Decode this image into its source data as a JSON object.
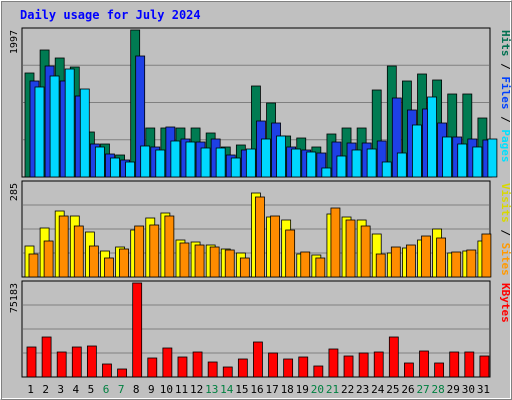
{
  "chart_data": {
    "type": "bar",
    "title": "Daily usage for July 2024",
    "categories": [
      "1",
      "2",
      "3",
      "4",
      "5",
      "6",
      "7",
      "8",
      "9",
      "10",
      "11",
      "12",
      "13",
      "14",
      "15",
      "16",
      "17",
      "18",
      "19",
      "20",
      "21",
      "22",
      "23",
      "24",
      "25",
      "26",
      "27",
      "28",
      "29",
      "30",
      "31"
    ],
    "weekend_days": [
      "6",
      "7",
      "13",
      "14",
      "20",
      "21",
      "27",
      "28"
    ],
    "panels": [
      {
        "id": "top",
        "max_label": "1997",
        "ymax": 1997,
        "legend": [
          {
            "text": "Hits",
            "color": "#007050"
          },
          {
            "text": "Files",
            "color": "#0040ff"
          },
          {
            "text": "Pages",
            "color": "#00e0ff"
          }
        ],
        "separator": "/",
        "series": [
          {
            "name": "Hits",
            "color": "#007b52",
            "values": [
              1416,
              1725,
              1622,
              1498,
              613,
              443,
              299,
              1997,
              659,
              659,
              663,
              663,
              601,
              406,
              431,
              1232,
              1008,
              552,
              524,
              401,
              582,
              659,
              659,
              1178,
              1512,
              1299,
              1406,
              1319,
              1122,
              1128,
              801
            ]
          },
          {
            "name": "Files",
            "color": "#1e40e6",
            "values": [
              1309,
              1505,
              1308,
              1094,
              443,
              314,
              228,
              1646,
              406,
              680,
              512,
              473,
              519,
              299,
              370,
              767,
              729,
              409,
              370,
              320,
              478,
              468,
              460,
              492,
              1068,
              912,
              923,
              737,
              542,
              523,
              503
            ]
          },
          {
            "name": "Pages",
            "color": "#00d8ff",
            "values": [
              1225,
              1366,
              1473,
              1190,
              409,
              255,
              206,
              423,
              370,
              490,
              473,
              392,
              397,
              255,
              385,
              522,
              562,
              384,
              341,
              128,
              288,
              361,
              384,
              198,
              332,
              711,
              1090,
              537,
              442,
              407,
              515
            ]
          }
        ]
      },
      {
        "id": "middle",
        "max_label": "285",
        "ymax": 285,
        "legend": [
          {
            "text": "Visits",
            "color": "#d8d800"
          },
          {
            "text": "Sites",
            "color": "#ff9900"
          }
        ],
        "separator": "/",
        "series": [
          {
            "name": "Visits",
            "color": "#ffff00",
            "values": [
              95,
              150,
              200,
              186,
              135,
              78,
              92,
              143,
              179,
              193,
              113,
              106,
              98,
              86,
              72,
              255,
              182,
              173,
              71,
              67,
              192,
              181,
              174,
              130,
              72,
              88,
              112,
              147,
              72,
              78,
              109
            ]
          },
          {
            "name": "Sites",
            "color": "#ff8c00",
            "values": [
              70,
              109,
              186,
              155,
              93,
              57,
              86,
              155,
              158,
              186,
              103,
              98,
              91,
              83,
              57,
              243,
              186,
              143,
              76,
              59,
              209,
              174,
              155,
              71,
              92,
              97,
              123,
              119,
              76,
              81,
              130
            ]
          }
        ]
      },
      {
        "id": "bottom",
        "max_label": "75183",
        "ymax": 75183,
        "legend": [
          {
            "text": "KBytes",
            "color": "#ff0000"
          }
        ],
        "separator": "",
        "series": [
          {
            "name": "KBytes",
            "color": "#ff0000",
            "values": [
              24000,
              32000,
              20000,
              24000,
              25000,
              10000,
              6000,
              75183,
              15000,
              23000,
              16000,
              20000,
              12000,
              8000,
              14000,
              28000,
              19000,
              14000,
              16000,
              9000,
              22000,
              17000,
              19000,
              20000,
              32000,
              11000,
              21000,
              11000,
              20000,
              20000,
              17000
            ]
          }
        ]
      }
    ]
  }
}
